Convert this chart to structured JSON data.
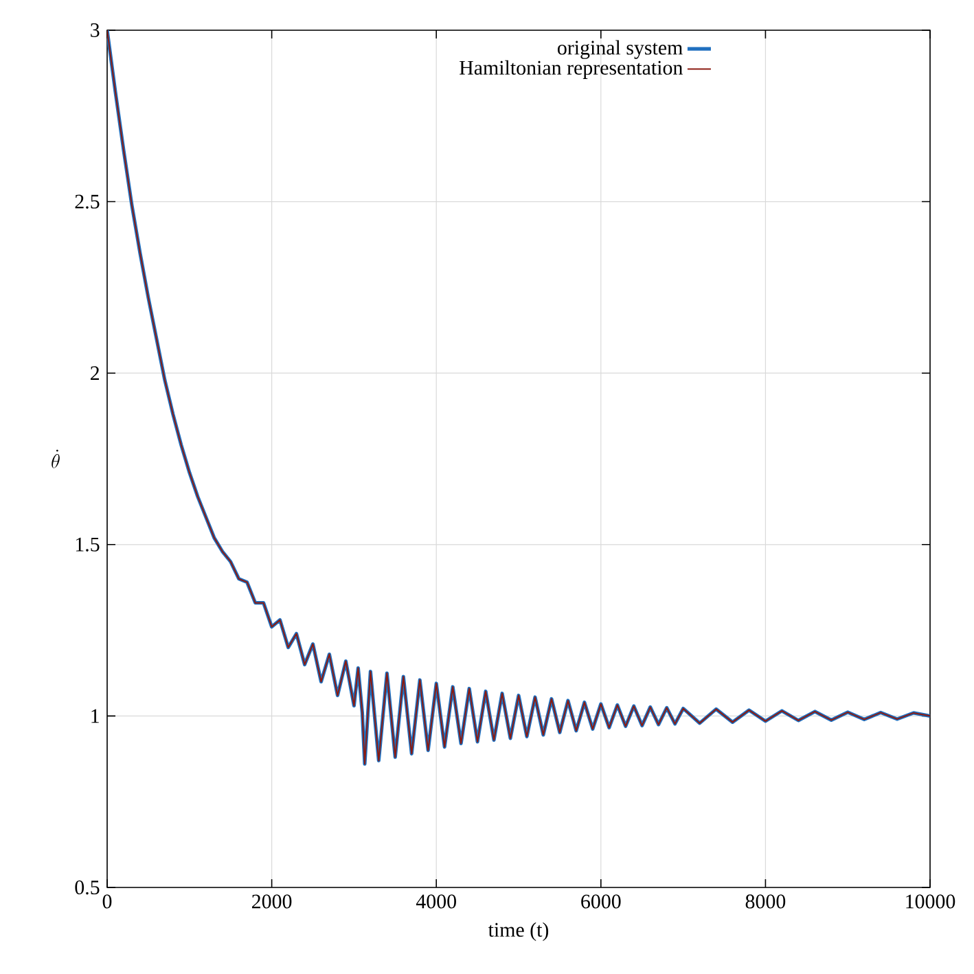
{
  "chart_data": {
    "type": "line",
    "xlabel": "time (t)",
    "ylabel": "\\dot{\\theta}",
    "xlim": [
      0,
      10000
    ],
    "ylim": [
      0.5,
      3
    ],
    "xticks": [
      0,
      2000,
      4000,
      6000,
      8000,
      10000
    ],
    "yticks": [
      {
        "value": 0.5,
        "label": "0.5"
      },
      1,
      {
        "value": 1.5,
        "label": "1.5"
      },
      2,
      {
        "value": 2.5,
        "label": "2.5"
      },
      3
    ],
    "grid": true,
    "legend": "top",
    "marker": "none",
    "line_style": "solid",
    "x": [
      0,
      100,
      200,
      300,
      400,
      500,
      600,
      700,
      800,
      900,
      1000,
      1100,
      1200,
      1300,
      1400,
      1500,
      1600,
      1700,
      1800,
      1900,
      2000,
      2100,
      2200,
      2300,
      2400,
      2500,
      2600,
      2700,
      2800,
      2900,
      3000,
      3050,
      3100,
      3130,
      3200,
      3300,
      3400,
      3500,
      3600,
      3700,
      3800,
      3900,
      4000,
      4100,
      4200,
      4300,
      4400,
      4500,
      4600,
      4700,
      4800,
      4900,
      5000,
      5100,
      5200,
      5300,
      5400,
      5500,
      5600,
      5700,
      5800,
      5900,
      6000,
      6100,
      6200,
      6300,
      6400,
      6500,
      6600,
      6700,
      6800,
      6900,
      7000,
      7200,
      7400,
      7600,
      7800,
      8000,
      8200,
      8400,
      8600,
      8800,
      9000,
      9200,
      9400,
      9600,
      9800,
      10000
    ],
    "series": [
      {
        "name": "original system",
        "color": "#1f6fbf",
        "values": [
          3.0,
          2.82,
          2.65,
          2.49,
          2.35,
          2.22,
          2.1,
          1.98,
          1.88,
          1.79,
          1.71,
          1.64,
          1.58,
          1.52,
          1.48,
          1.45,
          1.4,
          1.39,
          1.33,
          1.33,
          1.26,
          1.28,
          1.2,
          1.24,
          1.15,
          1.21,
          1.1,
          1.18,
          1.06,
          1.16,
          1.03,
          1.14,
          1.01,
          0.86,
          1.13,
          0.87,
          1.125,
          0.88,
          1.115,
          0.89,
          1.105,
          0.9,
          1.095,
          0.91,
          1.085,
          0.92,
          1.08,
          0.925,
          1.072,
          0.93,
          1.066,
          0.935,
          1.06,
          0.94,
          1.055,
          0.945,
          1.05,
          0.952,
          1.045,
          0.957,
          1.04,
          0.962,
          1.035,
          0.966,
          1.032,
          0.97,
          1.029,
          0.972,
          1.026,
          0.975,
          1.024,
          0.977,
          1.022,
          0.979,
          1.02,
          0.982,
          1.017,
          0.985,
          1.015,
          0.987,
          1.013,
          0.988,
          1.011,
          0.99,
          1.01,
          0.991,
          1.009,
          1.0
        ]
      },
      {
        "name": "Hamiltonian representation",
        "color": "#8b1a10",
        "values": [
          3.0,
          2.82,
          2.65,
          2.49,
          2.35,
          2.22,
          2.1,
          1.98,
          1.88,
          1.79,
          1.71,
          1.64,
          1.58,
          1.52,
          1.48,
          1.45,
          1.4,
          1.39,
          1.33,
          1.33,
          1.26,
          1.28,
          1.2,
          1.24,
          1.15,
          1.21,
          1.1,
          1.18,
          1.06,
          1.16,
          1.03,
          1.14,
          1.01,
          0.86,
          1.13,
          0.87,
          1.125,
          0.88,
          1.115,
          0.89,
          1.105,
          0.9,
          1.095,
          0.91,
          1.085,
          0.92,
          1.08,
          0.925,
          1.072,
          0.93,
          1.066,
          0.935,
          1.06,
          0.94,
          1.055,
          0.945,
          1.05,
          0.952,
          1.045,
          0.957,
          1.04,
          0.962,
          1.035,
          0.966,
          1.032,
          0.97,
          1.029,
          0.972,
          1.026,
          0.975,
          1.024,
          0.977,
          1.022,
          0.979,
          1.02,
          0.982,
          1.017,
          0.985,
          1.015,
          0.987,
          1.013,
          0.988,
          1.011,
          0.99,
          1.01,
          0.991,
          1.009,
          1.0
        ]
      }
    ]
  }
}
